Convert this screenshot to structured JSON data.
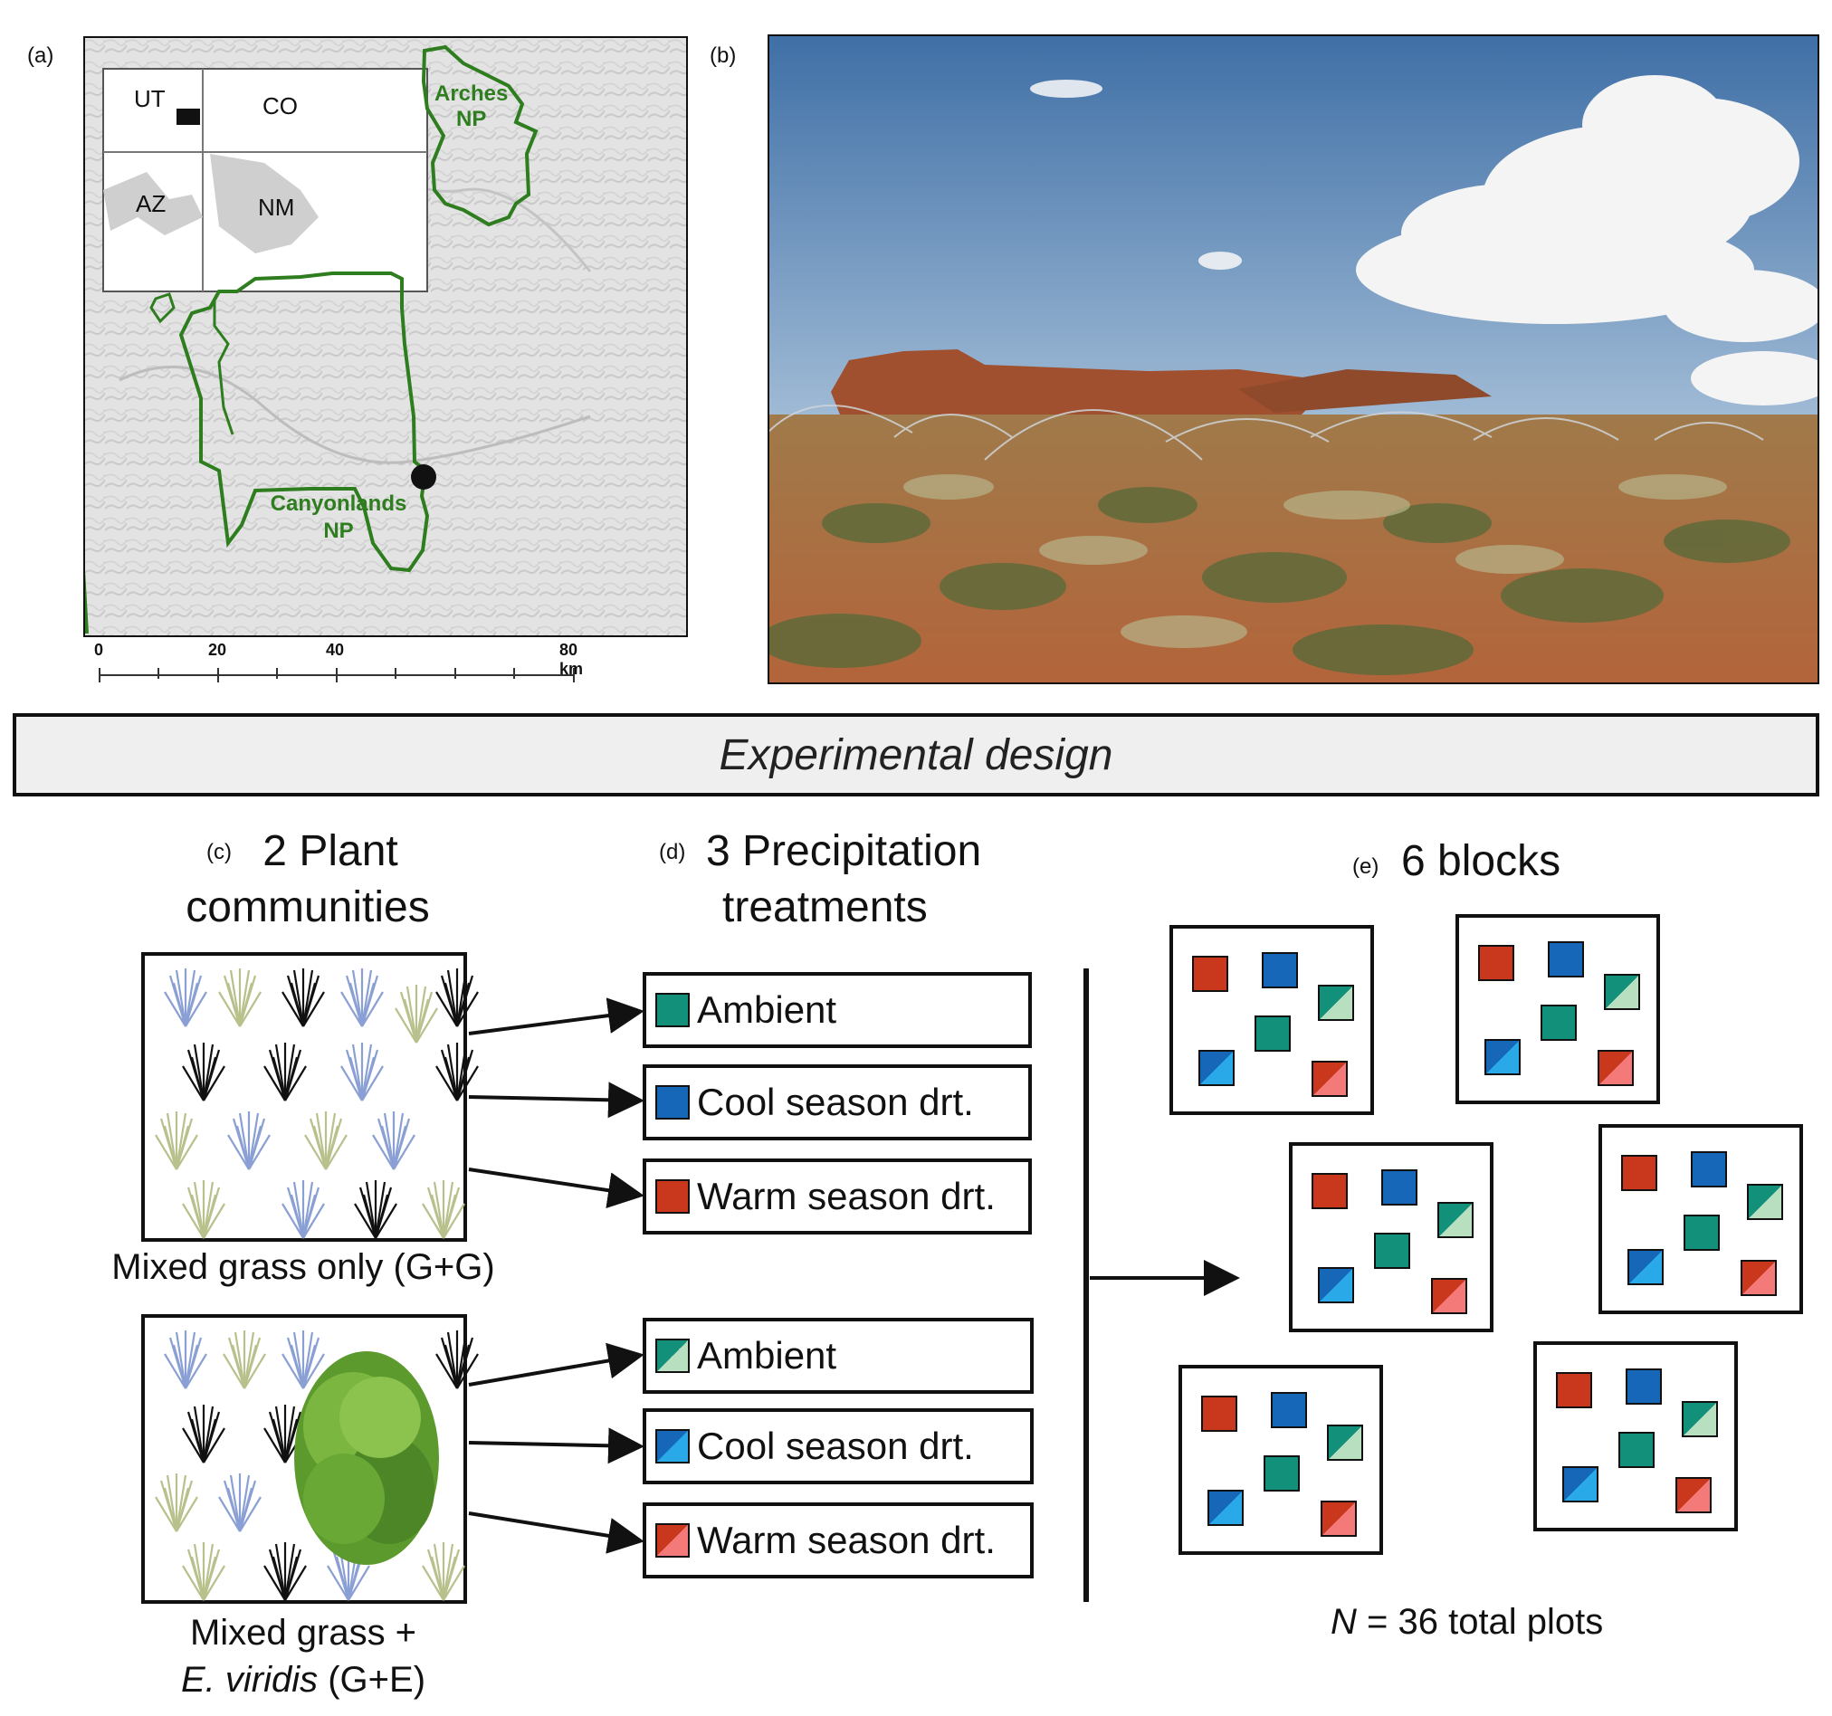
{
  "panels": {
    "a": "(a)",
    "b": "(b)",
    "c": "(c)",
    "d": "(d)",
    "e": "(e)"
  },
  "map": {
    "states": [
      "UT",
      "CO",
      "AZ",
      "NM"
    ],
    "parks": {
      "arches_line1": "Arches",
      "arches_line2": "NP",
      "canyon_line1": "Canyonlands",
      "canyon_line2": "NP"
    },
    "scale": {
      "ticks": [
        "0",
        "20",
        "40",
        "80 km"
      ]
    },
    "colors": {
      "park_boundary": "#2e7d1f",
      "terrain": "#e2e2e2"
    }
  },
  "banner": {
    "title": "Experimental design"
  },
  "plant_communities": {
    "title_line1": "2 Plant",
    "title_line2": "communities",
    "gg_caption": "Mixed grass only (G+G)",
    "ge_caption_line1": "Mixed grass +",
    "ge_caption_species": "E. viridis",
    "ge_caption_suffix": " (G+E)"
  },
  "precipitation": {
    "title_line1": "3 Precipitation",
    "title_line2": "treatments",
    "gg_treatments": [
      "Ambient",
      "Cool season drt.",
      "Warm season drt."
    ],
    "ge_treatments": [
      "Ambient",
      "Cool season drt.",
      "Warm season drt."
    ]
  },
  "blocks": {
    "title": "6 blocks",
    "total_prefix": "N",
    "total_suffix": " = 36 total plots"
  },
  "colors": {
    "ambient": "#12907a",
    "ambient_light": "#b7dfc0",
    "cool": "#1667b8",
    "cool_light": "#29a9e8",
    "warm": "#c9381d",
    "warm_light": "#f47a7a"
  }
}
